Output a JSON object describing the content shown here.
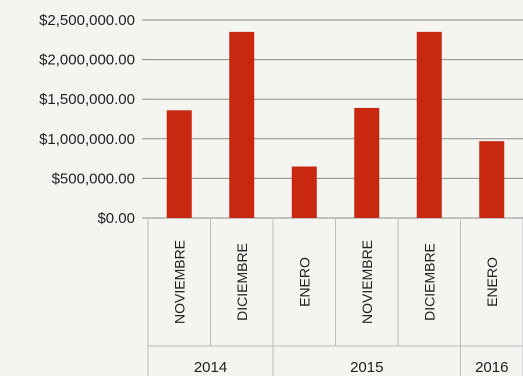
{
  "chart_data": {
    "type": "bar",
    "title": "",
    "xlabel": "",
    "ylabel": "",
    "ylim": [
      0,
      2500000
    ],
    "y_ticks": [
      "$0.00",
      "$500,000.00",
      "$1,000,000.00",
      "$1,500,000.00",
      "$2,000,000.00",
      "$2,500,000.00"
    ],
    "y_tick_values": [
      0,
      500000,
      1000000,
      1500000,
      2000000,
      2500000
    ],
    "grid": true,
    "legend": "none",
    "bar_color": "#c8280f",
    "categories": [
      "NOVIEMBRE",
      "DICIEMBRE",
      "ENERO",
      "NOVIEMBRE",
      "DICIEMBRE",
      "ENERO"
    ],
    "groups": [
      {
        "label": "2014",
        "start": 0,
        "end": 1
      },
      {
        "label": "2015",
        "start": 2,
        "end": 4
      },
      {
        "label": "2016",
        "start": 5,
        "end": 5
      }
    ],
    "values": [
      1360000,
      2350000,
      650000,
      1390000,
      2350000,
      970000
    ]
  }
}
